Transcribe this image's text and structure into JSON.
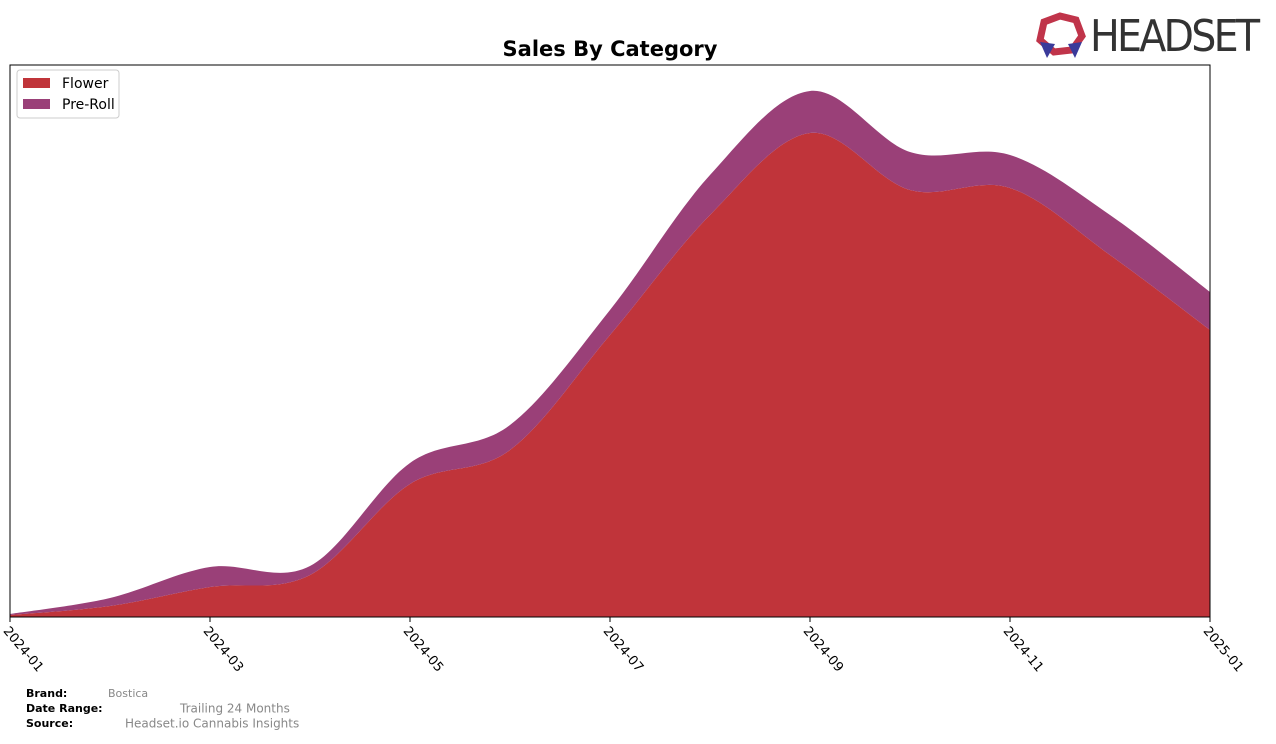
{
  "chart_data": {
    "type": "stacked-area",
    "title": "Sales By Category",
    "categories": [
      "2024-01",
      null,
      "2024-03",
      null,
      "2024-05",
      null,
      "2024-07",
      null,
      "2024-09",
      null,
      "2024-11",
      null,
      "2025-01"
    ],
    "series": [
      {
        "name": "Flower",
        "color": "#c0343a",
        "values": [
          2,
          11,
          30,
          42,
          133,
          167,
          282,
          402,
          484,
          427,
          429,
          362,
          287
        ]
      },
      {
        "name": "Pre-Roll",
        "color": "#9a4078",
        "values": [
          1,
          8,
          20,
          9,
          21,
          25,
          25,
          40,
          42,
          38,
          33,
          40,
          38
        ]
      }
    ],
    "ylim": [
      0,
      552
    ],
    "legend": "upper left"
  },
  "logo": "HEADSET",
  "footer": {
    "brand_label": "Brand:",
    "brand": "Bostica",
    "date_label": "Date Range:",
    "date": "Trailing 24 Months",
    "source_label": "Source:",
    "source": "Headset.io Cannabis Insights"
  }
}
